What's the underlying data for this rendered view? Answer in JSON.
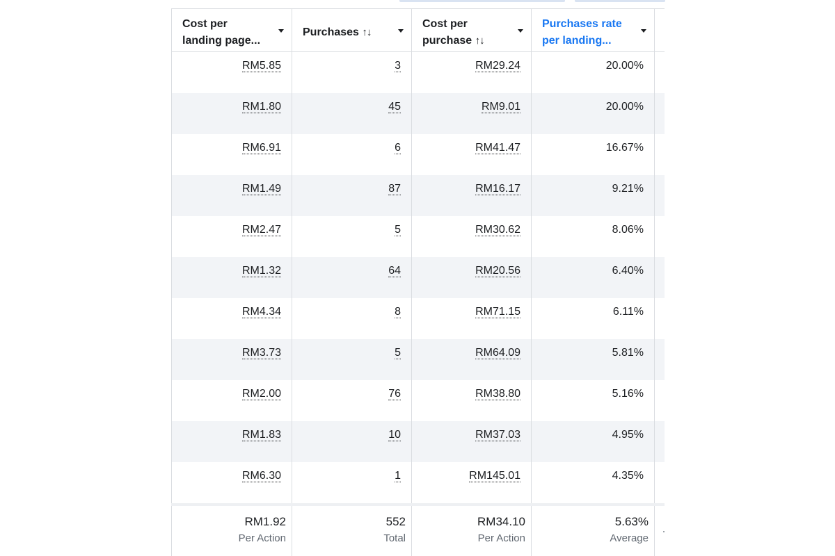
{
  "columns": [
    {
      "line1": "Cost per",
      "line2": "landing page...",
      "sortable": false,
      "highlighted": false
    },
    {
      "line1": "Purchases",
      "line2": "",
      "sortable": true,
      "highlighted": false
    },
    {
      "line1": "Cost per",
      "line2": "purchase",
      "sortable": true,
      "highlighted": false
    },
    {
      "line1": "Purchases rate",
      "line2": "per landing...",
      "sortable": false,
      "highlighted": true
    }
  ],
  "sort_glyph": "↑↓",
  "rows": [
    {
      "cost_per_landing_page": "RM5.85",
      "purchases": "3",
      "cost_per_purchase": "RM29.24",
      "purchase_rate": "20.00%"
    },
    {
      "cost_per_landing_page": "RM1.80",
      "purchases": "45",
      "cost_per_purchase": "RM9.01",
      "purchase_rate": "20.00%"
    },
    {
      "cost_per_landing_page": "RM6.91",
      "purchases": "6",
      "cost_per_purchase": "RM41.47",
      "purchase_rate": "16.67%"
    },
    {
      "cost_per_landing_page": "RM1.49",
      "purchases": "87",
      "cost_per_purchase": "RM16.17",
      "purchase_rate": "9.21%"
    },
    {
      "cost_per_landing_page": "RM2.47",
      "purchases": "5",
      "cost_per_purchase": "RM30.62",
      "purchase_rate": "8.06%"
    },
    {
      "cost_per_landing_page": "RM1.32",
      "purchases": "64",
      "cost_per_purchase": "RM20.56",
      "purchase_rate": "6.40%"
    },
    {
      "cost_per_landing_page": "RM4.34",
      "purchases": "8",
      "cost_per_purchase": "RM71.15",
      "purchase_rate": "6.11%"
    },
    {
      "cost_per_landing_page": "RM3.73",
      "purchases": "5",
      "cost_per_purchase": "RM64.09",
      "purchase_rate": "5.81%"
    },
    {
      "cost_per_landing_page": "RM2.00",
      "purchases": "76",
      "cost_per_purchase": "RM38.80",
      "purchase_rate": "5.16%"
    },
    {
      "cost_per_landing_page": "RM1.83",
      "purchases": "10",
      "cost_per_purchase": "RM37.03",
      "purchase_rate": "4.95%"
    },
    {
      "cost_per_landing_page": "RM6.30",
      "purchases": "1",
      "cost_per_purchase": "RM145.01",
      "purchase_rate": "4.35%"
    }
  ],
  "totals": [
    {
      "value": "RM1.92",
      "label": "Per Action"
    },
    {
      "value": "552",
      "label": "Total"
    },
    {
      "value": "RM34.10",
      "label": "Per Action"
    },
    {
      "value": "5.63%",
      "label": "Average"
    }
  ],
  "colors": {
    "text": "#1c1e21",
    "accent": "#1877f2",
    "alt_row": "#f2f4f7",
    "border": "#dadde1",
    "subtext": "#606770"
  }
}
